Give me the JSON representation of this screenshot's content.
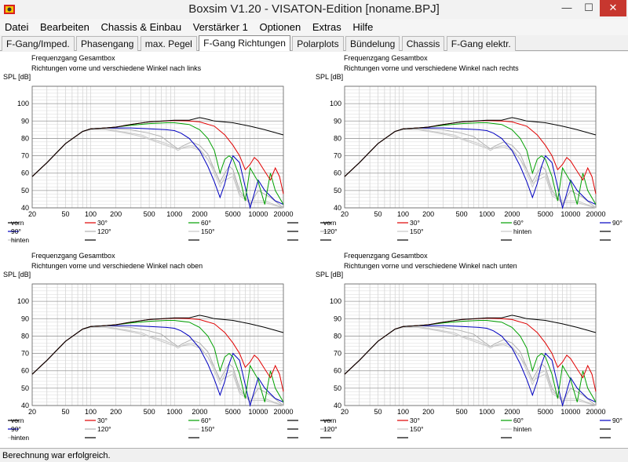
{
  "window": {
    "title": "Boxsim V1.20 - VISATON-Edition [noname.BPJ]",
    "minimize": "—",
    "maximize": "☐",
    "close": "✕"
  },
  "menu": [
    "Datei",
    "Bearbeiten",
    "Chassis & Einbau",
    "Verstärker 1",
    "Optionen",
    "Extras",
    "Hilfe"
  ],
  "tabs": [
    {
      "label": "F-Gang/Imped.",
      "active": false
    },
    {
      "label": "Phasengang",
      "active": false
    },
    {
      "label": "max. Pegel",
      "active": false
    },
    {
      "label": "F-Gang Richtungen",
      "active": true
    },
    {
      "label": "Polarplots",
      "active": false
    },
    {
      "label": "Bündelung",
      "active": false
    },
    {
      "label": "Chassis",
      "active": false
    },
    {
      "label": "F-Gang elektr.",
      "active": false
    }
  ],
  "colors": {
    "vorn": "#000000",
    "30": "#e00000",
    "60": "#00a000",
    "90": "#0000c0",
    "120": "#b0b0b0",
    "150": "#c8c8c8",
    "hinten": "#c8c8c8",
    "grid": "#999999"
  },
  "status": "Berechnung war erfolgreich.",
  "chart_data": [
    {
      "type": "line",
      "title": "Frequenzgang Gesamtbox",
      "subtitle": "Richtungen vorne und verschiedene Winkel nach links",
      "ylabel": "SPL [dB]",
      "xscale": "log",
      "xlim": [
        20,
        20000
      ],
      "ylim": [
        40,
        110
      ],
      "xticks": [
        "20",
        "50",
        "100",
        "200",
        "500",
        "1000",
        "2000",
        "5000",
        "10000",
        "20000"
      ],
      "yticks": [
        "40",
        "50",
        "60",
        "70",
        "80",
        "90",
        "100"
      ],
      "legend": [
        [
          "vorn",
          "30°",
          "60°",
          ""
        ],
        [
          "90°",
          "120°",
          "150°",
          ""
        ],
        [
          "hinten",
          "",
          "",
          ""
        ]
      ],
      "series_ref": "series_common"
    },
    {
      "type": "line",
      "title": "Frequenzgang Gesamtbox",
      "subtitle": "Richtungen vorne und verschiedene Winkel nach rechts",
      "ylabel": "SPL [dB]",
      "xscale": "log",
      "xlim": [
        20,
        20000
      ],
      "ylim": [
        40,
        110
      ],
      "xticks": [
        "20",
        "50",
        "100",
        "200",
        "500",
        "1000",
        "2000",
        "5000",
        "10000",
        "20000"
      ],
      "yticks": [
        "40",
        "50",
        "60",
        "70",
        "80",
        "90",
        "100"
      ],
      "legend": [
        [
          "vorn",
          "30°",
          "60°",
          "90°"
        ],
        [
          "120°",
          "150°",
          "hinten",
          ""
        ],
        [
          "",
          "",
          "",
          ""
        ]
      ],
      "series_ref": "series_common"
    },
    {
      "type": "line",
      "title": "Frequenzgang Gesamtbox",
      "subtitle": "Richtungen vorne und verschiedene Winkel nach oben",
      "ylabel": "SPL [dB]",
      "xscale": "log",
      "xlim": [
        20,
        20000
      ],
      "ylim": [
        40,
        110
      ],
      "xticks": [
        "20",
        "50",
        "100",
        "200",
        "500",
        "1000",
        "2000",
        "5000",
        "10000",
        "20000"
      ],
      "yticks": [
        "40",
        "50",
        "60",
        "70",
        "80",
        "90",
        "100"
      ],
      "legend": [
        [
          "vorn",
          "30°",
          "60°",
          ""
        ],
        [
          "90°",
          "120°",
          "150°",
          ""
        ],
        [
          "hinten",
          "",
          "",
          ""
        ]
      ],
      "series_ref": "series_common"
    },
    {
      "type": "line",
      "title": "Frequenzgang Gesamtbox",
      "subtitle": "Richtungen vorne und verschiedene Winkel nach unten",
      "ylabel": "SPL [dB]",
      "xscale": "log",
      "xlim": [
        20,
        20000
      ],
      "ylim": [
        40,
        110
      ],
      "xticks": [
        "20",
        "50",
        "100",
        "200",
        "500",
        "1000",
        "2000",
        "5000",
        "10000",
        "20000"
      ],
      "yticks": [
        "40",
        "50",
        "60",
        "70",
        "80",
        "90",
        "100"
      ],
      "legend": [
        [
          "vorn",
          "30°",
          "60°",
          "90°"
        ],
        [
          "120°",
          "150°",
          "hinten",
          ""
        ],
        [
          "",
          "",
          "",
          ""
        ]
      ],
      "series_ref": "series_common"
    }
  ],
  "series_common": [
    {
      "name": "vorn",
      "color": "#000000",
      "x": [
        20,
        30,
        50,
        80,
        100,
        150,
        200,
        300,
        500,
        1000,
        1500,
        2000,
        2500,
        3000,
        5000,
        8000,
        12000,
        20000
      ],
      "y": [
        58,
        66,
        77,
        84,
        85.5,
        86,
        86.5,
        88,
        89.5,
        90.5,
        90.5,
        92,
        91,
        90,
        89,
        87,
        85,
        82
      ]
    },
    {
      "name": "30°",
      "color": "#e00000",
      "x": [
        20,
        30,
        50,
        80,
        100,
        150,
        200,
        300,
        500,
        1000,
        1500,
        2000,
        3000,
        4000,
        5000,
        6000,
        7000,
        8000,
        9000,
        10000,
        12000,
        14000,
        16000,
        18000,
        20000
      ],
      "y": [
        58,
        66,
        77,
        84,
        85.5,
        86,
        86.5,
        88,
        89.5,
        90.3,
        90,
        89.5,
        87,
        82,
        76,
        70,
        62,
        65,
        69,
        67,
        61,
        56,
        63,
        58,
        48
      ]
    },
    {
      "name": "60°",
      "color": "#00a000",
      "x": [
        20,
        30,
        50,
        80,
        100,
        150,
        200,
        300,
        500,
        800,
        1000,
        1500,
        2000,
        2500,
        3000,
        3500,
        4000,
        4500,
        5000,
        6000,
        7000,
        8000,
        10000,
        12000,
        14000,
        16000,
        20000
      ],
      "y": [
        58,
        66,
        77,
        84,
        85.5,
        86,
        86.5,
        87.5,
        88.5,
        89,
        89,
        88,
        85,
        80,
        73,
        60,
        68,
        70,
        68,
        58,
        44,
        63,
        55,
        42,
        60,
        50,
        42
      ]
    },
    {
      "name": "90°",
      "color": "#0000c0",
      "x": [
        20,
        30,
        50,
        80,
        100,
        150,
        200,
        300,
        500,
        800,
        1000,
        1200,
        1500,
        2000,
        2500,
        3000,
        3500,
        4000,
        4500,
        5000,
        6000,
        7000,
        8000,
        10000,
        12000,
        16000,
        20000
      ],
      "y": [
        58,
        66,
        77,
        84,
        85.5,
        86,
        86,
        86,
        85.5,
        85,
        84.5,
        83,
        80,
        73,
        64,
        55,
        46,
        54,
        64,
        70,
        66,
        52,
        40,
        56,
        50,
        44,
        42
      ]
    },
    {
      "name": "120°",
      "color": "#b0b0b0",
      "x": [
        20,
        30,
        50,
        80,
        100,
        150,
        200,
        300,
        500,
        700,
        900,
        1100,
        1300,
        1600,
        2000,
        2500,
        3000,
        3500,
        4000,
        4500,
        5000,
        6000,
        8000,
        10000,
        14000,
        20000
      ],
      "y": [
        58,
        66,
        77,
        84,
        85.5,
        86,
        85.5,
        85,
        83,
        81,
        77,
        74,
        76,
        78,
        76,
        71,
        62,
        55,
        60,
        64,
        62,
        50,
        42,
        50,
        46,
        40
      ]
    },
    {
      "name": "150°",
      "color": "#c8c8c8",
      "x": [
        20,
        30,
        50,
        80,
        100,
        150,
        200,
        300,
        400,
        500,
        700,
        900,
        1100,
        1300,
        1600,
        2000,
        2500,
        3000,
        3500,
        4000,
        5000,
        6000,
        8000,
        12000,
        20000
      ],
      "y": [
        58,
        66,
        77,
        84,
        85.3,
        85.5,
        84.5,
        83,
        82,
        80,
        78,
        76,
        73,
        75,
        76,
        74,
        68,
        60,
        52,
        58,
        60,
        48,
        44,
        44,
        40
      ]
    },
    {
      "name": "hinten",
      "color": "#c8c8c8",
      "x": [
        20,
        30,
        50,
        80,
        100,
        150,
        200,
        300,
        400,
        500,
        700,
        900,
        1100,
        1300,
        1600,
        2000,
        2500,
        3000,
        3500,
        4000,
        5000,
        6000,
        8000,
        12000,
        20000
      ],
      "y": [
        58,
        66,
        77,
        84,
        85,
        85,
        84,
        82.5,
        81,
        79.5,
        77,
        75,
        74,
        74.5,
        75,
        73,
        68,
        62,
        54,
        56,
        58,
        47,
        43,
        43,
        40
      ]
    }
  ]
}
